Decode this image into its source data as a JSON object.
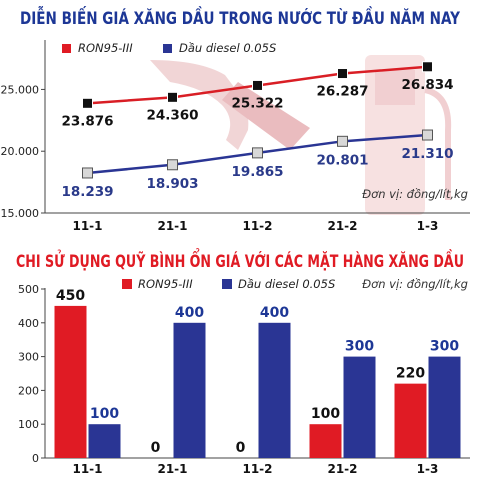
{
  "colors": {
    "title": "#1d3796",
    "ron95": "#e01b24",
    "diesel": "#2a3594",
    "line_ron95": "#d91e25",
    "line_diesel": "#2a3594",
    "backdrop": "#f3d6d6"
  },
  "chart_data": [
    {
      "type": "line",
      "title": "DIỄN BIẾN GIÁ XĂNG DẦU TRONG NƯỚC TỪ ĐẦU NĂM NAY",
      "unit_note": "Đơn vị: đồng/lít,kg",
      "categories": [
        "11-1",
        "21-1",
        "11-2",
        "21-2",
        "1-3"
      ],
      "ylim": [
        15000,
        29000
      ],
      "yticks": [
        "15.000",
        "20.000",
        "25.000"
      ],
      "ytick_values": [
        15000,
        20000,
        25000
      ],
      "legend_position": "top-left",
      "series": [
        {
          "name": "RON95-III",
          "values": [
            23876,
            24360,
            25322,
            26287,
            26834
          ],
          "labels": [
            "23.876",
            "24.360",
            "25.322",
            "26.287",
            "26.834"
          ]
        },
        {
          "name": "Dầu diesel 0.05S",
          "values": [
            18239,
            18903,
            19865,
            20801,
            21310
          ],
          "labels": [
            "18.239",
            "18.903",
            "19.865",
            "20.801",
            "21.310"
          ]
        }
      ]
    },
    {
      "type": "bar",
      "title": "CHI SỬ DỤNG QUỸ BÌNH ỔN GIÁ VỚI CÁC MẶT HÀNG XĂNG DẦU",
      "unit_note": "Đơn vị: đồng/lít,kg",
      "categories": [
        "11-1",
        "21-1",
        "11-2",
        "21-2",
        "1-3"
      ],
      "ylim": [
        0,
        500
      ],
      "yticks": [
        "0",
        "100",
        "200",
        "300",
        "400",
        "500"
      ],
      "ytick_values": [
        0,
        100,
        200,
        300,
        400,
        500
      ],
      "legend_position": "top",
      "series": [
        {
          "name": "RON95-III",
          "values": [
            450,
            0,
            0,
            100,
            220
          ]
        },
        {
          "name": "Dầu diesel 0.05S",
          "values": [
            100,
            400,
            400,
            300,
            300
          ]
        }
      ]
    }
  ]
}
